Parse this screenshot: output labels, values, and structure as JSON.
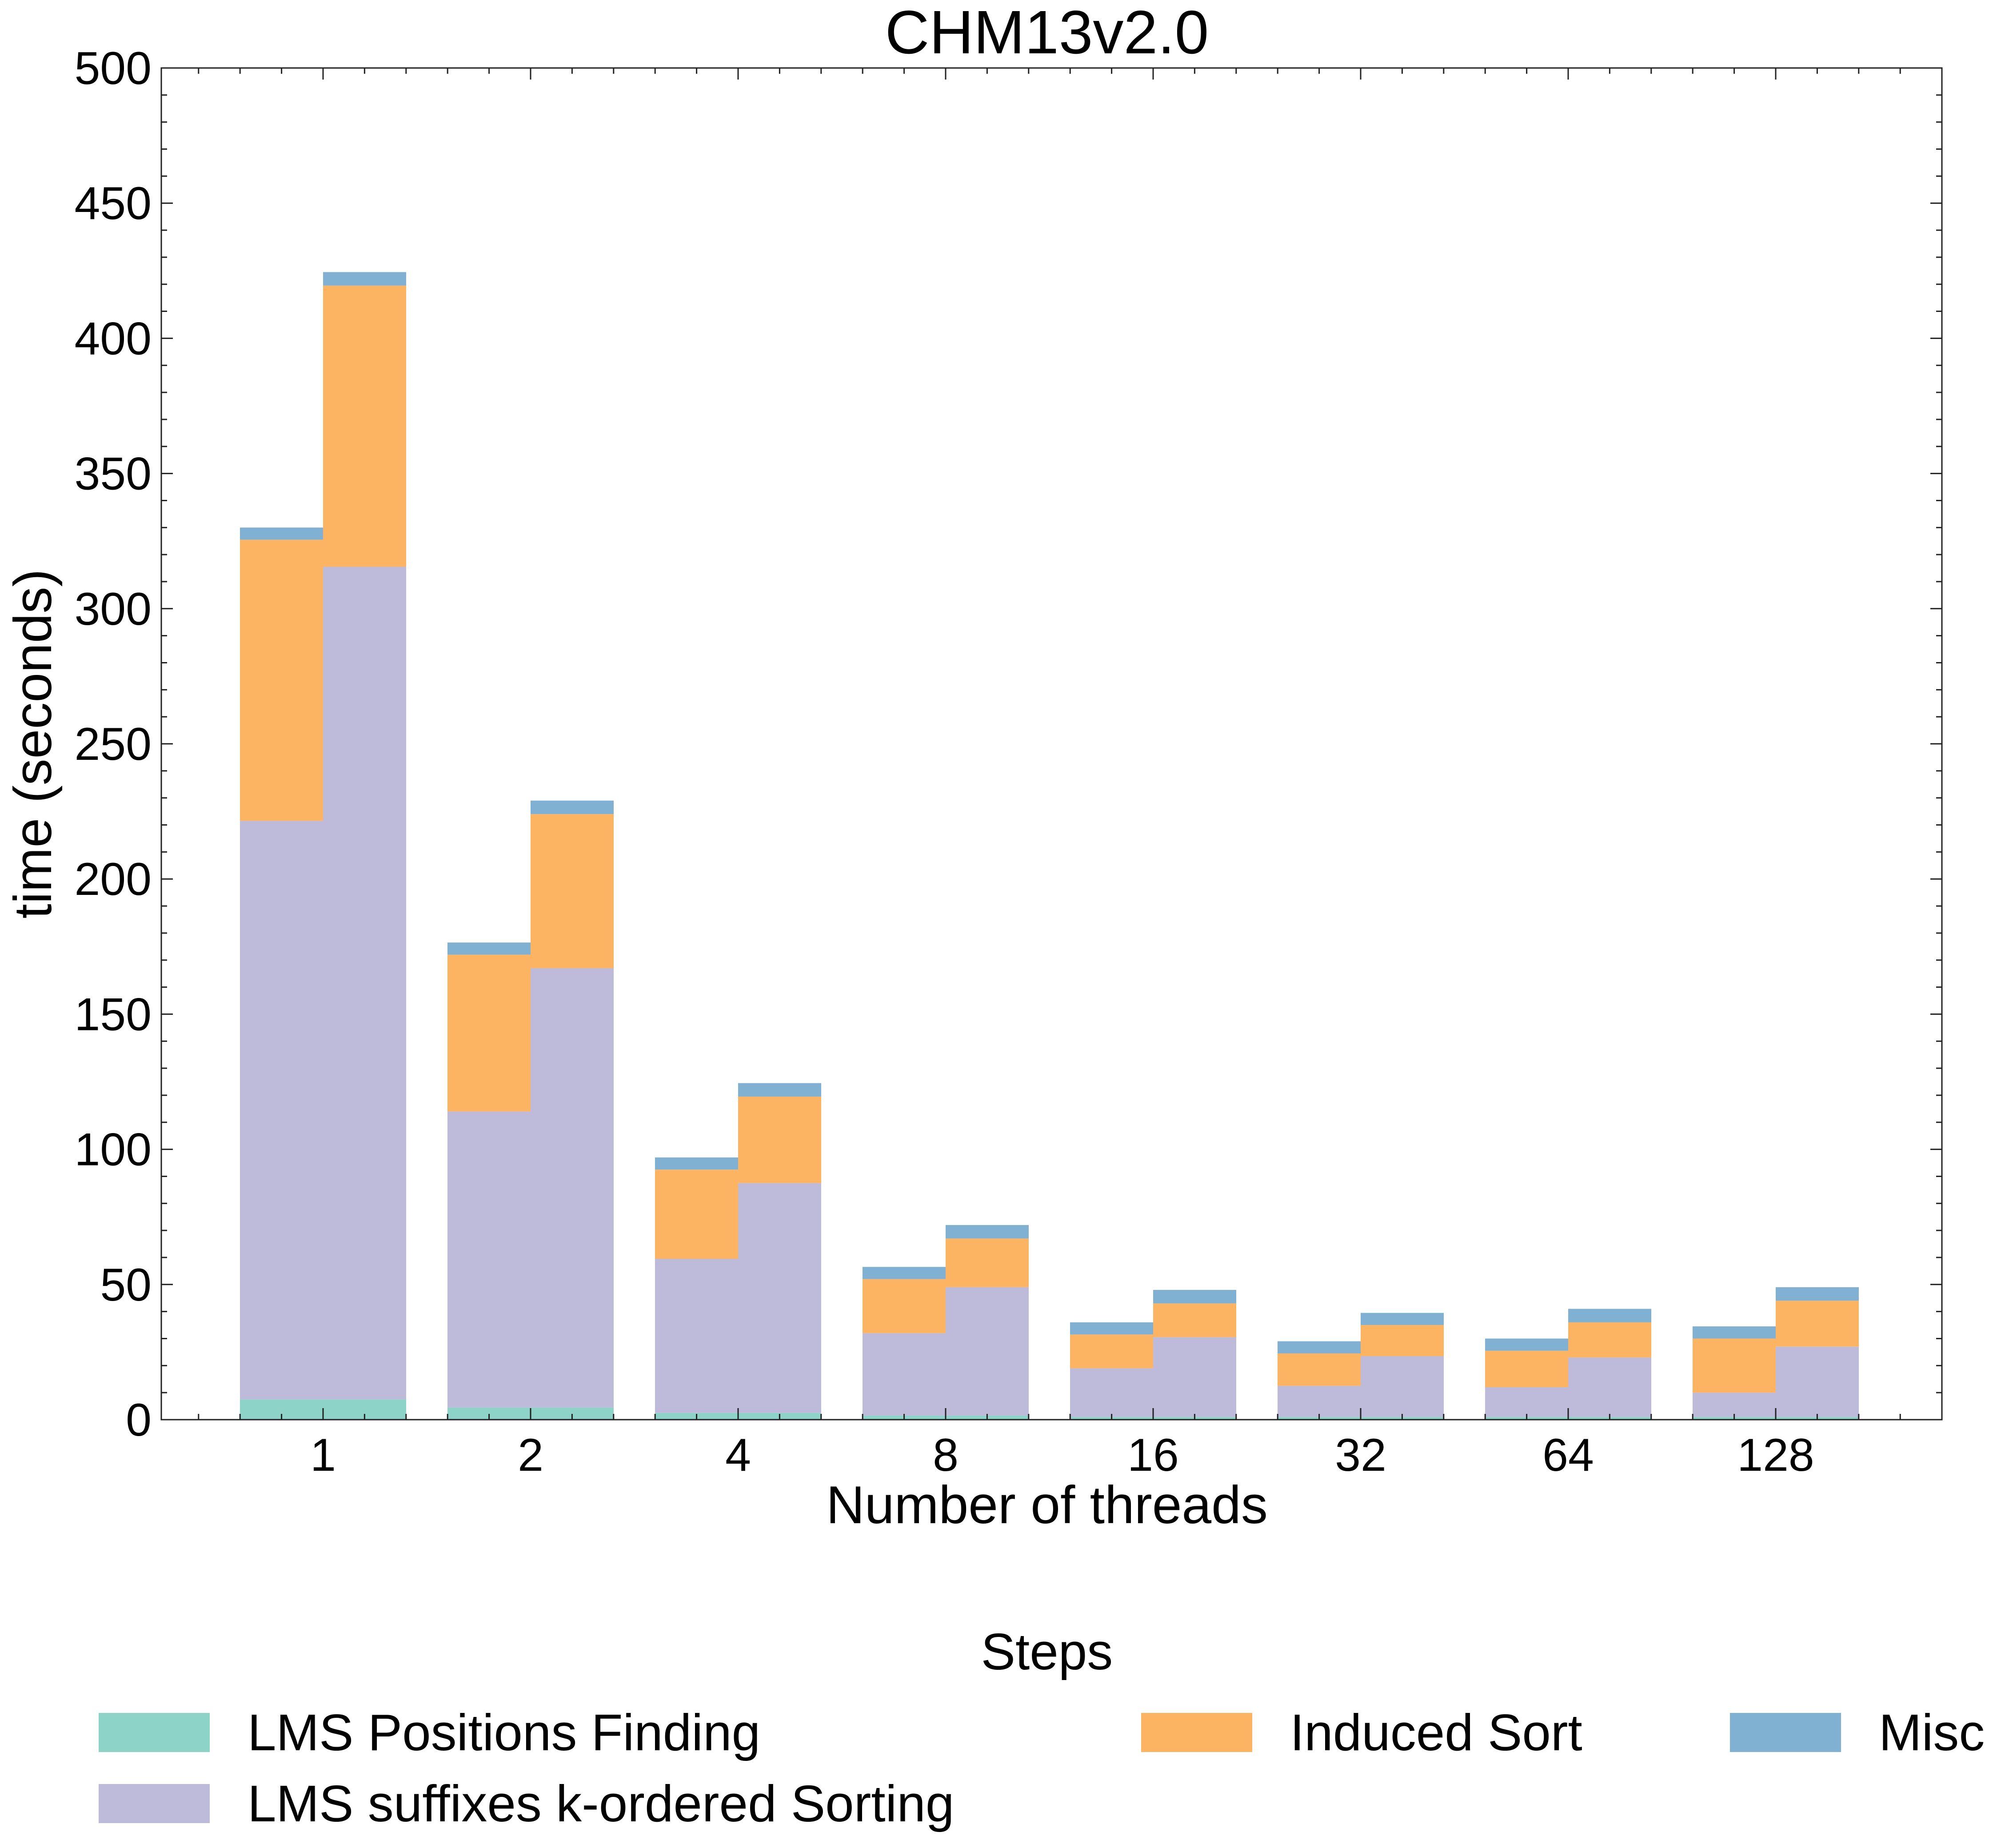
{
  "chart_data": {
    "type": "bar",
    "stacked": true,
    "title": "CHM13v2.0",
    "xlabel": "Number of threads",
    "ylabel": "time (seconds)",
    "ylim": [
      0,
      500
    ],
    "yticks": [
      0,
      50,
      100,
      150,
      200,
      250,
      300,
      350,
      400,
      450,
      500
    ],
    "categories": [
      "1",
      "2",
      "4",
      "8",
      "16",
      "32",
      "64",
      "128"
    ],
    "bars_per_category": 2,
    "grid": false,
    "legend": {
      "title": "Steps",
      "placement": "bottom-center"
    },
    "series": [
      {
        "name": "LMS Positions Finding",
        "color": "#8dd3c7",
        "values": [
          [
            7.5,
            7.5
          ],
          [
            4.5,
            4.5
          ],
          [
            2.5,
            2.5
          ],
          [
            1.5,
            1.5
          ],
          [
            1,
            1
          ],
          [
            1,
            1
          ],
          [
            1,
            1
          ],
          [
            1,
            1
          ]
        ]
      },
      {
        "name": "LMS suffixes k-ordered Sorting",
        "color": "#bebada",
        "values": [
          [
            214,
            308
          ],
          [
            109.5,
            162.5
          ],
          [
            57,
            85
          ],
          [
            30.5,
            47.5
          ],
          [
            18,
            29.5
          ],
          [
            11.5,
            22.5
          ],
          [
            11,
            22
          ],
          [
            9,
            26
          ]
        ]
      },
      {
        "name": "Induced Sort",
        "color": "#fdb462",
        "values": [
          [
            104,
            104
          ],
          [
            58,
            57
          ],
          [
            33,
            32
          ],
          [
            20,
            18
          ],
          [
            12.5,
            12.5
          ],
          [
            12,
            11.5
          ],
          [
            13.5,
            13
          ],
          [
            20,
            17
          ]
        ]
      },
      {
        "name": "Misc",
        "color": "#80b1d3",
        "values": [
          [
            4.5,
            5
          ],
          [
            4.5,
            5
          ],
          [
            4.5,
            5
          ],
          [
            4.5,
            5
          ],
          [
            4.5,
            5
          ],
          [
            4.5,
            4.5
          ],
          [
            4.5,
            5
          ],
          [
            4.5,
            5
          ]
        ]
      }
    ]
  }
}
